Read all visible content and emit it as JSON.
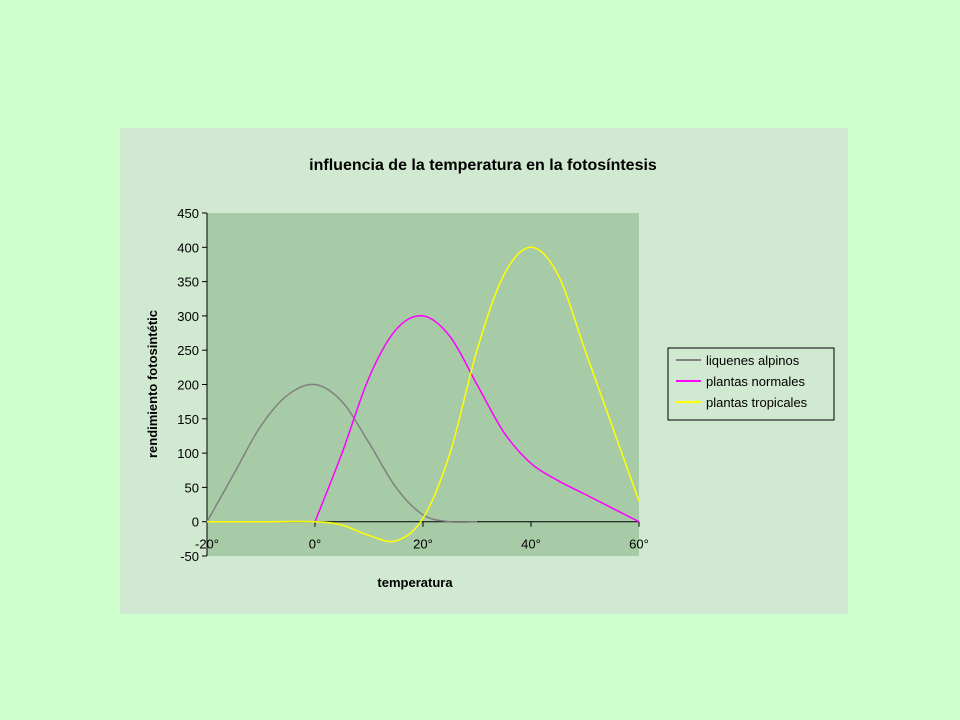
{
  "colors": {
    "page_background": "#ccffcc",
    "chart_area": "#d1e8d1",
    "plot_area": "#a7cba7"
  },
  "chart_data": {
    "type": "line",
    "title": "influencia de la temperatura en la fotosíntesis",
    "xlabel": "temperatura",
    "ylabel": "rendimiento fotosintétic",
    "xlim": [
      -20,
      60
    ],
    "ylim": [
      -50,
      450
    ],
    "x_ticks": [
      -20,
      0,
      20,
      40,
      60
    ],
    "x_tick_labels": [
      "-20°",
      "0°",
      "20°",
      "40°",
      "60°"
    ],
    "y_ticks": [
      -50,
      0,
      50,
      100,
      150,
      200,
      250,
      300,
      350,
      400,
      450
    ],
    "y_tick_labels": [
      "-50",
      "0",
      "50",
      "100",
      "150",
      "200",
      "250",
      "300",
      "350",
      "400",
      "450"
    ],
    "grid": false,
    "legend_position": "right",
    "series": [
      {
        "name": "liquenes alpinos",
        "color": "#808080",
        "x": [
          -20,
          -15,
          -10,
          -5,
          0,
          5,
          10,
          15,
          20,
          25,
          30
        ],
        "y": [
          0,
          70,
          140,
          185,
          200,
          175,
          115,
          50,
          10,
          0,
          0
        ]
      },
      {
        "name": "plantas normales",
        "color": "#ff00ff",
        "x": [
          0,
          5,
          10,
          15,
          20,
          25,
          30,
          35,
          40,
          45,
          50,
          55,
          60
        ],
        "y": [
          0,
          100,
          210,
          280,
          300,
          270,
          200,
          130,
          85,
          60,
          40,
          20,
          0
        ]
      },
      {
        "name": "plantas tropicales",
        "color": "#ffff00",
        "x": [
          -20,
          -10,
          0,
          5,
          10,
          15,
          20,
          25,
          30,
          35,
          40,
          45,
          50,
          55,
          60
        ],
        "y": [
          0,
          0,
          0,
          -5,
          -20,
          -28,
          5,
          100,
          250,
          360,
          400,
          360,
          250,
          140,
          30
        ]
      }
    ]
  }
}
